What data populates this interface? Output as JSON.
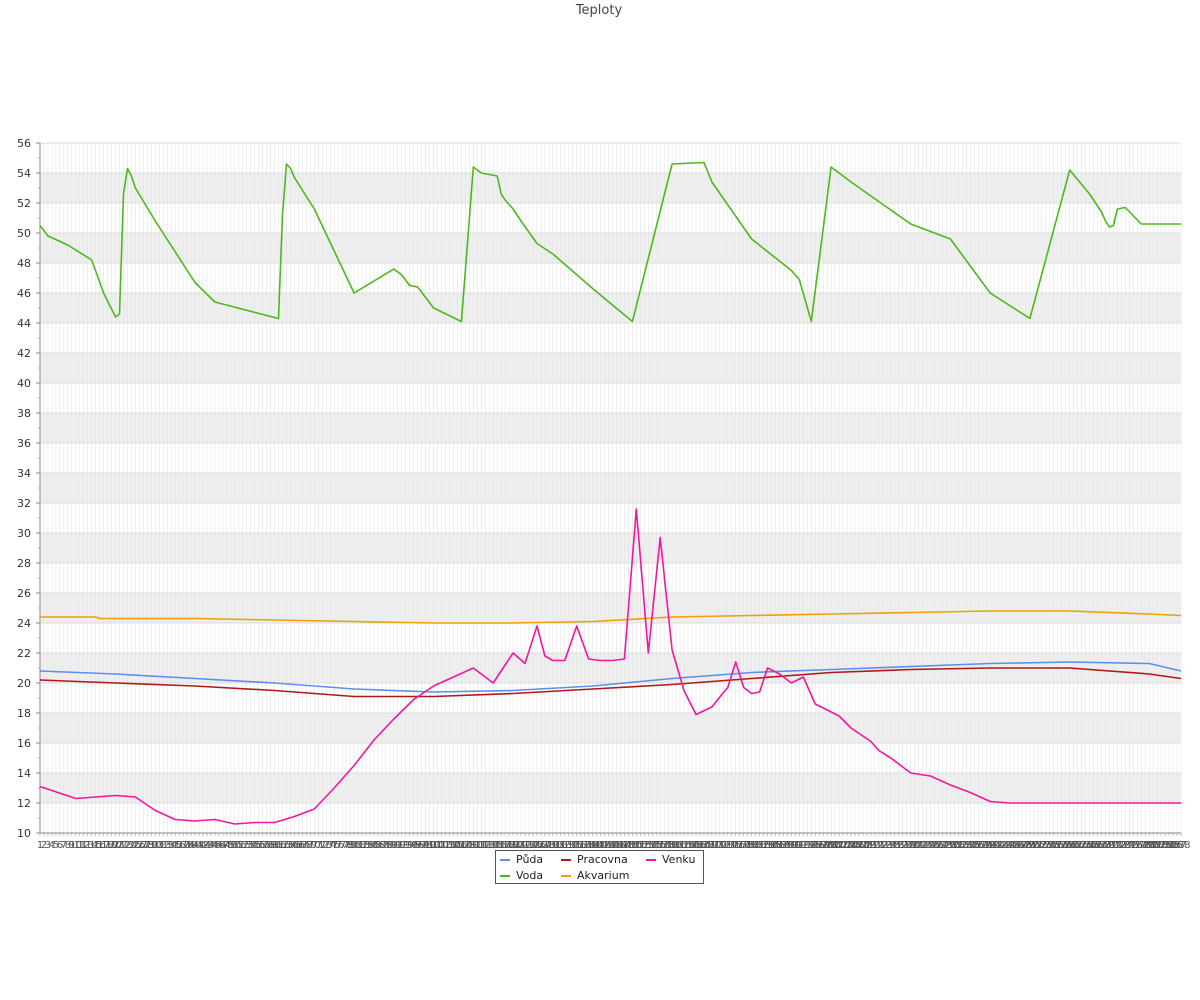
{
  "chart_data": {
    "type": "line",
    "title": "Teploty",
    "xlabel": "",
    "ylabel": "",
    "ylim": [
      10,
      56
    ],
    "yticks": [
      10,
      12,
      14,
      16,
      18,
      20,
      22,
      24,
      26,
      28,
      30,
      32,
      34,
      36,
      38,
      40,
      42,
      44,
      46,
      48,
      50,
      52,
      54,
      56
    ],
    "x_range": [
      1,
      288
    ],
    "first_x_label": "1",
    "last_x_label": "288",
    "grid": true,
    "alternating_bands": true,
    "legend_position": "bottom-center",
    "series": [
      {
        "name": "Půda",
        "color": "#5b8ff0",
        "x": [
          1,
          20,
          40,
          60,
          80,
          100,
          120,
          140,
          160,
          180,
          200,
          220,
          240,
          260,
          280,
          288
        ],
        "values": [
          20.8,
          20.6,
          20.3,
          20.0,
          19.6,
          19.4,
          19.5,
          19.8,
          20.3,
          20.7,
          20.9,
          21.1,
          21.3,
          21.4,
          21.3,
          20.8
        ]
      },
      {
        "name": "Voda",
        "color": "#4db81c",
        "x": [
          1,
          3,
          8,
          14,
          17,
          20,
          21,
          22,
          23,
          24,
          25,
          30,
          40,
          45,
          61,
          62,
          63,
          64,
          65,
          70,
          80,
          90,
          91,
          92,
          94,
          96,
          100,
          107,
          108,
          110,
          112,
          116,
          117,
          118,
          119,
          120,
          122,
          126,
          130,
          140,
          150,
          160,
          168,
          170,
          180,
          190,
          192,
          195,
          200,
          205,
          220,
          230,
          240,
          250,
          260,
          265,
          268,
          269,
          270,
          271,
          272,
          274,
          278,
          285,
          288
        ],
        "values": [
          50.5,
          49.8,
          49.2,
          48.2,
          46.0,
          44.4,
          44.6,
          52.6,
          54.3,
          53.8,
          53.0,
          50.8,
          46.7,
          45.4,
          44.3,
          51.2,
          54.6,
          54.3,
          53.7,
          51.6,
          46.0,
          47.6,
          47.4,
          47.2,
          46.5,
          46.4,
          45.0,
          44.1,
          47.5,
          54.4,
          54.0,
          53.8,
          52.6,
          52.2,
          51.9,
          51.6,
          50.8,
          49.3,
          48.6,
          46.3,
          44.1,
          54.6,
          54.7,
          53.4,
          49.6,
          47.5,
          46.9,
          44.1,
          54.4,
          53.4,
          50.6,
          49.6,
          46.0,
          44.3,
          54.2,
          52.6,
          51.4,
          50.8,
          50.4,
          50.5,
          51.6,
          51.7,
          50.6,
          50.6,
          50.6
        ]
      },
      {
        "name": "Pracovna",
        "color": "#b21818",
        "x": [
          1,
          20,
          40,
          60,
          70,
          80,
          100,
          120,
          140,
          160,
          180,
          200,
          220,
          240,
          260,
          280,
          288
        ],
        "values": [
          20.2,
          20.0,
          19.8,
          19.5,
          19.3,
          19.1,
          19.1,
          19.3,
          19.6,
          19.9,
          20.3,
          20.7,
          20.9,
          21.0,
          21.0,
          20.6,
          20.3
        ]
      },
      {
        "name": "Akvarium",
        "color": "#f0a000",
        "x": [
          1,
          15,
          16,
          40,
          60,
          80,
          100,
          120,
          140,
          160,
          180,
          200,
          220,
          240,
          260,
          280,
          288
        ],
        "values": [
          24.4,
          24.4,
          24.3,
          24.3,
          24.2,
          24.1,
          24.0,
          24.0,
          24.1,
          24.4,
          24.5,
          24.6,
          24.7,
          24.8,
          24.8,
          24.6,
          24.5
        ]
      },
      {
        "name": "Venku",
        "color": "#f0189c",
        "x": [
          1,
          10,
          20,
          25,
          30,
          35,
          40,
          45,
          50,
          55,
          60,
          65,
          70,
          75,
          80,
          85,
          90,
          95,
          100,
          105,
          110,
          115,
          118,
          120,
          123,
          126,
          128,
          130,
          133,
          136,
          139,
          142,
          145,
          148,
          151,
          154,
          157,
          160,
          163,
          166,
          170,
          173,
          174,
          176,
          178,
          180,
          182,
          184,
          187,
          190,
          193,
          196,
          199,
          202,
          205,
          210,
          212,
          215,
          220,
          225,
          230,
          235,
          240,
          245,
          250,
          255,
          260,
          265,
          270,
          275,
          280,
          285,
          288
        ],
        "values": [
          13.1,
          12.3,
          12.5,
          12.4,
          11.5,
          10.9,
          10.8,
          10.9,
          10.6,
          10.7,
          10.7,
          11.1,
          11.6,
          13.0,
          14.5,
          16.2,
          17.6,
          18.9,
          19.8,
          20.4,
          21.0,
          20.0,
          21.2,
          22.0,
          21.3,
          23.8,
          21.8,
          21.5,
          21.5,
          23.8,
          21.6,
          21.5,
          21.5,
          21.6,
          31.6,
          22.0,
          29.7,
          22.2,
          19.5,
          17.9,
          18.4,
          19.4,
          19.7,
          21.4,
          19.7,
          19.3,
          19.4,
          21.0,
          20.6,
          20.0,
          20.4,
          18.6,
          18.2,
          17.8,
          17.0,
          16.1,
          15.5,
          15.0,
          14.0,
          13.8,
          13.2,
          12.7,
          12.1,
          12.0,
          12.0,
          12.0,
          12.0,
          12.0,
          12.0,
          12.0,
          12.0,
          12.0,
          12.0
        ]
      }
    ]
  }
}
